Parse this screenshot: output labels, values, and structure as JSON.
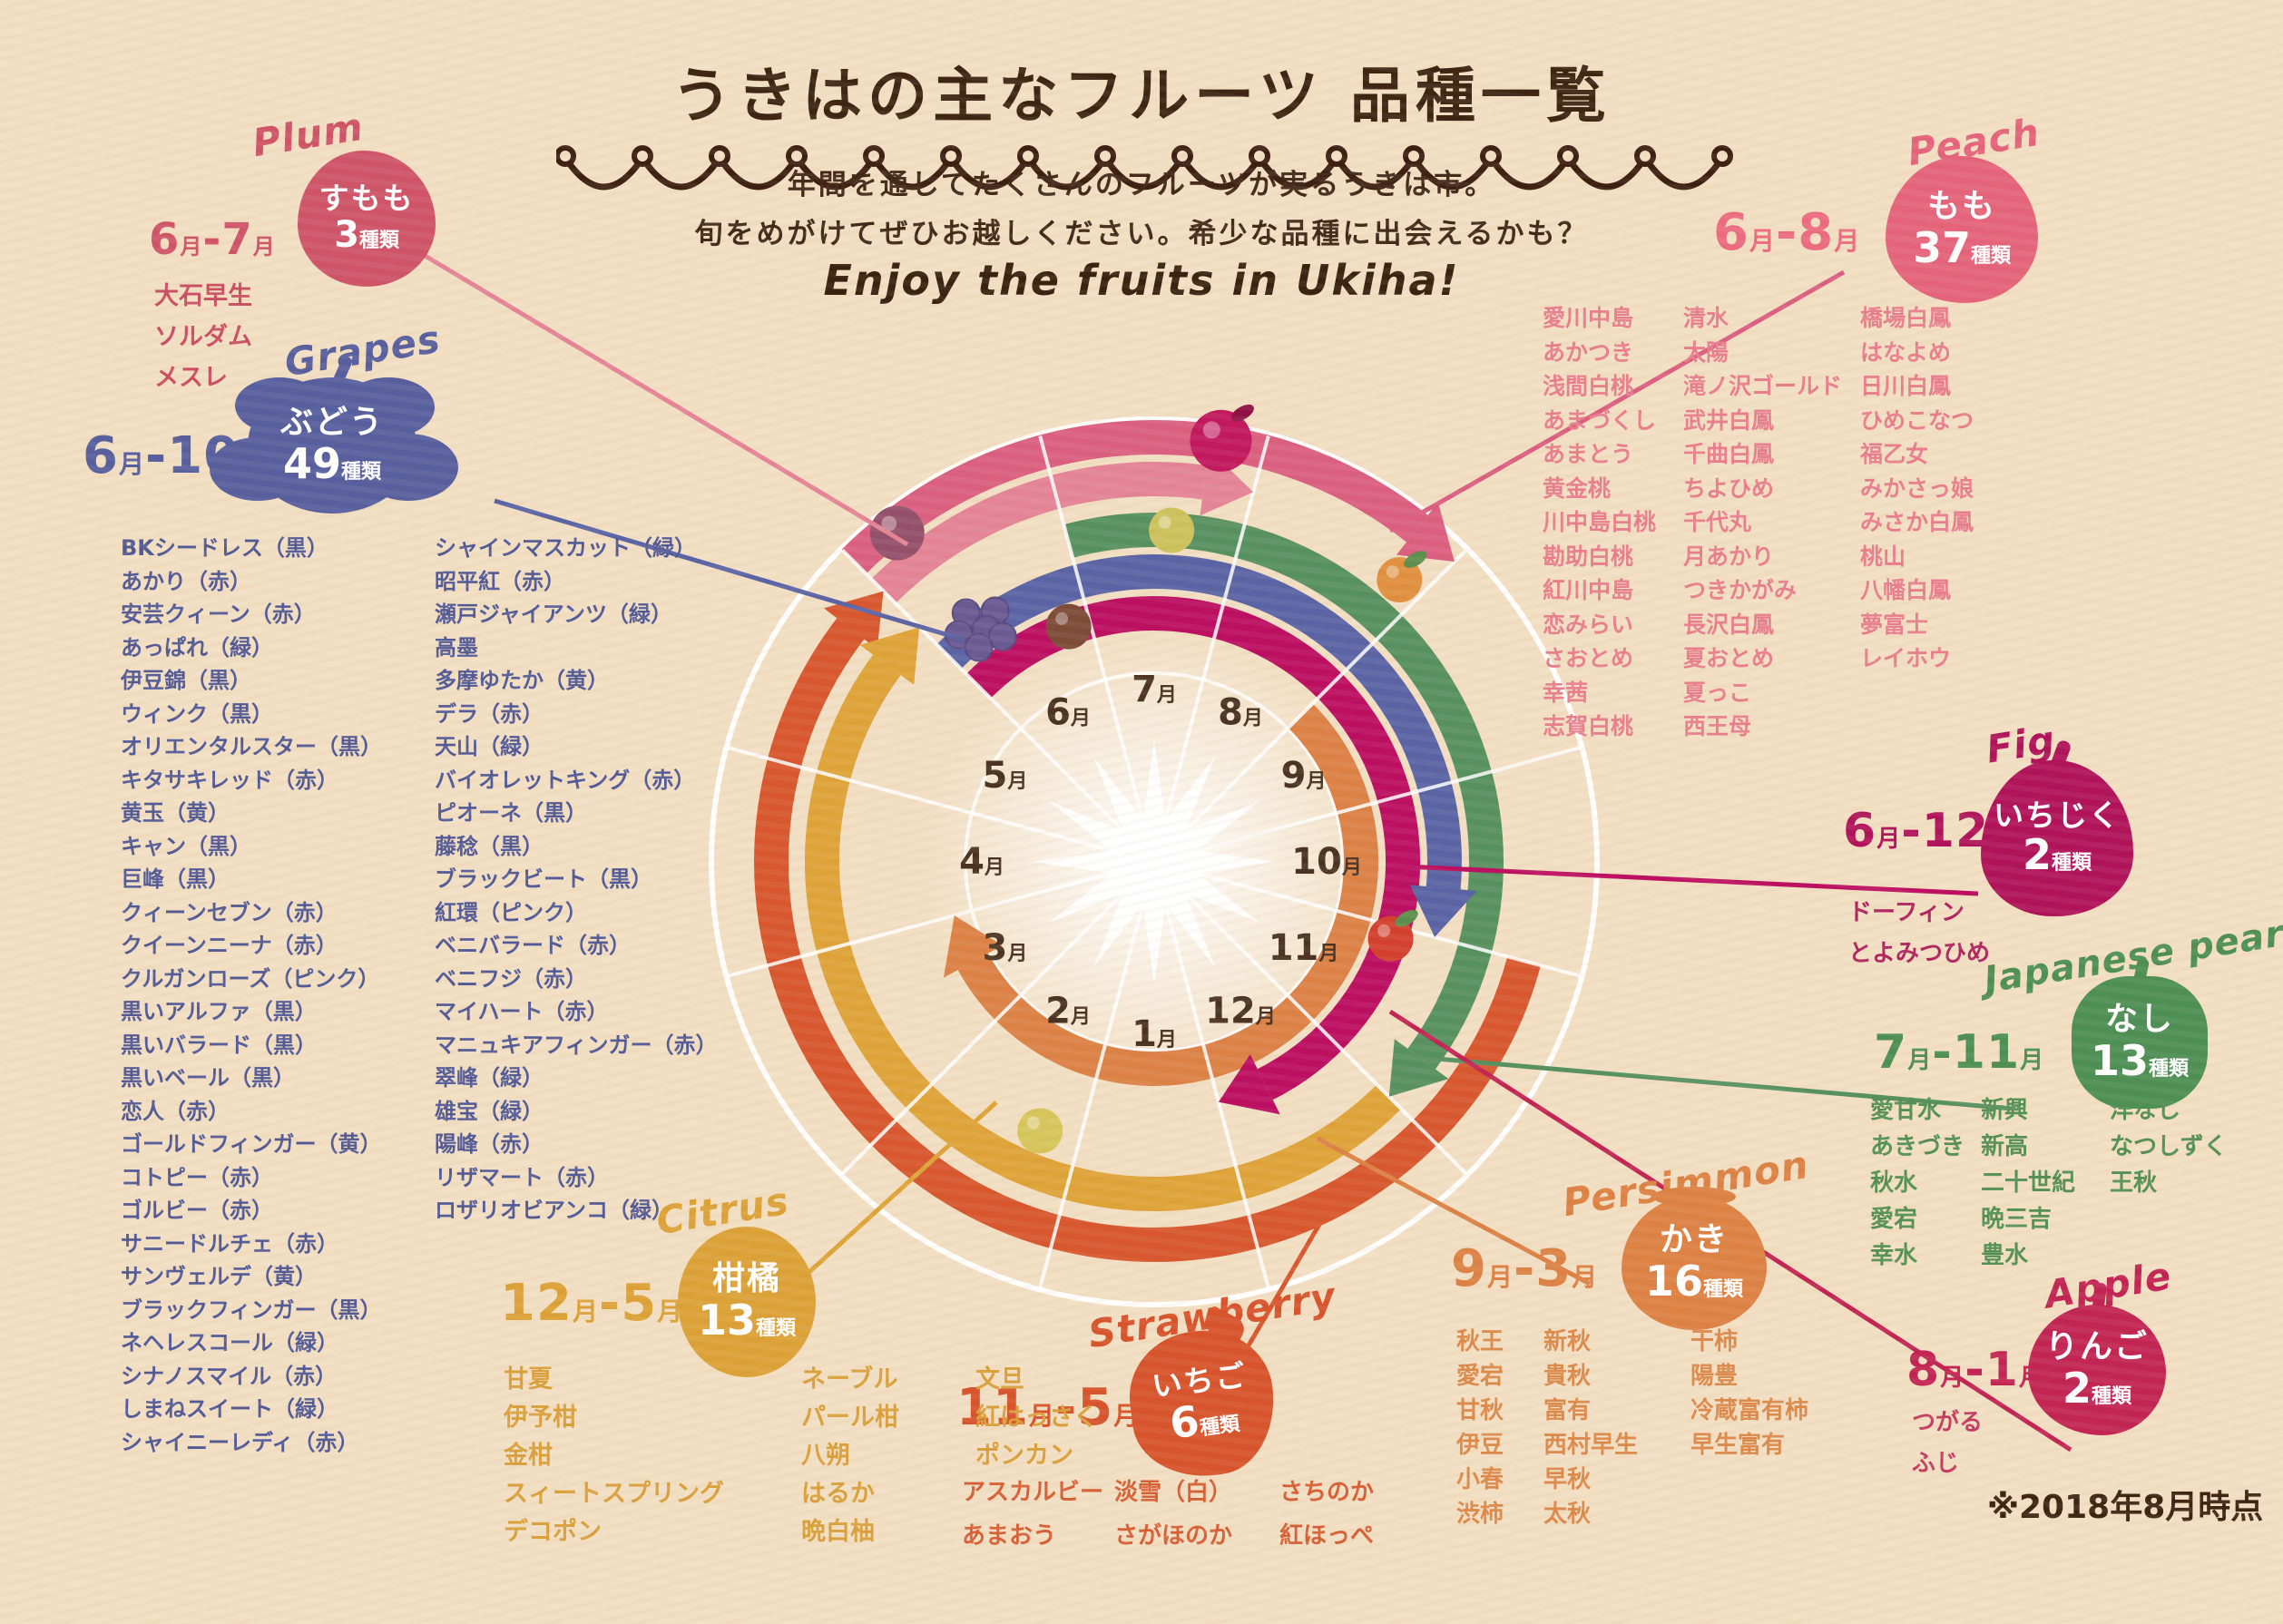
{
  "page": {
    "title": "うきはの主なフルーツ 品種一覧",
    "subtitle_line1": "年間を通してたくさんのフルーツが実るうきは市。",
    "subtitle_line2": "旬をめがけてぜひお越しください。希少な品種に出会えるかも？",
    "tagline": "Enjoy the fruits in Ukiha!",
    "note": "※2018年8月時点"
  },
  "chart_data": {
    "type": "radial-season-wheel",
    "description": "Harvest-calendar wheel: each colored band marks the months (clockwise, 7月 at top) when the fruit is in season in Ukiha.",
    "months_clockwise_from_top": [
      "7月",
      "8月",
      "9月",
      "10月",
      "11月",
      "12月",
      "1月",
      "2月",
      "3月",
      "4月",
      "5月",
      "6月"
    ],
    "series": [
      {
        "id": "plum",
        "label_en": "Plum",
        "name_ja": "すもも",
        "variety_count": 3,
        "count_suffix": "種類",
        "season_label": "6月-7月",
        "start_month": 6,
        "end_month": 7,
        "on_wheel": true,
        "color": "#cf5468",
        "arc_color": "#e48496",
        "varieties_columns": [
          [
            "大石早生",
            "ソルダム",
            "メスレ"
          ]
        ]
      },
      {
        "id": "grapes",
        "label_en": "Grapes",
        "name_ja": "ぶどう",
        "variety_count": 49,
        "count_suffix": "種類",
        "season_label": "6月-10月",
        "start_month": 6,
        "end_month": 10,
        "on_wheel": true,
        "color": "#575f9e",
        "arc_color": "#5a64a5",
        "varieties_columns": [
          [
            "BKシードレス（黒）",
            "あかり（赤）",
            "安芸クィーン（赤）",
            "あっぱれ（緑）",
            "伊豆錦（黒）",
            "ウィンク（黒）",
            "オリエンタルスター（黒）",
            "キタサキレッド（赤）",
            "黄玉（黄）",
            "キャン（黒）",
            "巨峰（黒）",
            "クィーンセブン（赤）",
            "クイーンニーナ（赤）",
            "クルガンローズ（ピンク）",
            "黒いアルファ（黒）",
            "黒いバラード（黒）",
            "黒いベール（黒）",
            "恋人（赤）",
            "ゴールドフィンガー（黄）",
            "コトピー（赤）",
            "ゴルビー（赤）",
            "サニードルチェ（赤）",
            "サンヴェルデ（黄）",
            "ブラックフィンガー（黒）",
            "ネヘレスコール（緑）",
            "シナノスマイル（赤）",
            "しまねスイート（緑）",
            "シャイニーレディ（赤）"
          ],
          [
            "シャインマスカット（緑）",
            "昭平紅（赤）",
            "瀬戸ジャイアンツ（緑）",
            "高墨",
            "多摩ゆたか（黄）",
            "デラ（赤）",
            "天山（緑）",
            "バイオレットキング（赤）",
            "ピオーネ（黒）",
            "藤稔（黒）",
            "ブラックビート（黒）",
            "紅環（ピンク）",
            "ベニバラード（赤）",
            "ベニフジ（赤）",
            "マイハート（赤）",
            "マニュキアフィンガー（赤）",
            "翠峰（緑）",
            "雄宝（緑）",
            "陽峰（赤）",
            "リザマート（赤）",
            "ロザリオビアンコ（緑）"
          ]
        ]
      },
      {
        "id": "peach",
        "label_en": "Peach",
        "name_ja": "もも",
        "variety_count": 37,
        "count_suffix": "種類",
        "season_label": "6月-8月",
        "start_month": 6,
        "end_month": 8,
        "on_wheel": true,
        "color": "#e5647b",
        "arc_color": "#db5f80",
        "varieties_columns": [
          [
            "愛川中島",
            "あかつき",
            "浅間白桃",
            "あまづくし",
            "あまとう",
            "黄金桃",
            "川中島白桃",
            "勘助白桃",
            "紅川中島",
            "恋みらい",
            "さおとめ",
            "幸茜",
            "志賀白桃"
          ],
          [
            "清水",
            "太陽",
            "滝ノ沢ゴールド",
            "武井白鳳",
            "千曲白鳳",
            "ちよひめ",
            "千代丸",
            "月あかり",
            "つきかがみ",
            "長沢白鳳",
            "夏おとめ",
            "夏っこ",
            "西王母"
          ],
          [
            "橋場白鳳",
            "はなよめ",
            "日川白鳳",
            "ひめこなつ",
            "福乙女",
            "みかさっ娘",
            "みさか白鳳",
            "桃山",
            "八幡白鳳",
            "夢富士",
            "レイホウ"
          ]
        ]
      },
      {
        "id": "fig",
        "label_en": "Fig",
        "name_ja": "いちじく",
        "variety_count": 2,
        "count_suffix": "種類",
        "season_label": "6月-12月",
        "start_month": 6,
        "end_month": 12,
        "on_wheel": true,
        "color": "#b1135b",
        "arc_color": "#bc0f62",
        "varieties_columns": [
          [
            "ドーフィン",
            "とよみつひめ"
          ]
        ]
      },
      {
        "id": "pear",
        "label_en": "Japanese pear",
        "name_ja": "なし",
        "variety_count": 13,
        "count_suffix": "種類",
        "season_label": "7月-11月",
        "start_month": 7,
        "end_month": 11,
        "on_wheel": true,
        "color": "#4d8f54",
        "arc_color": "#579160",
        "varieties_columns": [
          [
            "愛甘水",
            "あきづき",
            "秋水",
            "愛宕",
            "幸水"
          ],
          [
            "新興",
            "新高",
            "二十世紀",
            "晩三吉",
            "豊水"
          ],
          [
            "洋なし",
            "なつしずく",
            "王秋"
          ]
        ]
      },
      {
        "id": "apple",
        "label_en": "Apple",
        "name_ja": "りんご",
        "variety_count": 2,
        "count_suffix": "種類",
        "season_label": "8月-1月",
        "start_month": 8,
        "end_month": 1,
        "on_wheel": false,
        "color": "#c22553",
        "arc_color": "#c22553",
        "varieties_columns": [
          [
            "つがる",
            "ふじ"
          ]
        ]
      },
      {
        "id": "persimmon",
        "label_en": "Persimmon",
        "name_ja": "かき",
        "variety_count": 16,
        "count_suffix": "種類",
        "season_label": "9月-3月",
        "start_month": 9,
        "end_month": 3,
        "on_wheel": true,
        "color": "#dd8245",
        "arc_color": "#dc8247",
        "varieties_columns": [
          [
            "秋王",
            "愛宕",
            "甘秋",
            "伊豆",
            "小春",
            "渋柿"
          ],
          [
            "新秋",
            "貴秋",
            "富有",
            "西村早生",
            "早秋",
            "太秋"
          ],
          [
            "干柿",
            "陽豊",
            "冷蔵富有柿",
            "早生富有"
          ]
        ]
      },
      {
        "id": "strawberry",
        "label_en": "Strawberry",
        "name_ja": "いちご",
        "variety_count": 6,
        "count_suffix": "種類",
        "season_label": "11月-5月",
        "start_month": 11,
        "end_month": 5,
        "on_wheel": true,
        "color": "#d7542c",
        "arc_color": "#d8572e",
        "varieties_columns": [
          [
            "アスカルビー",
            "あまおう"
          ],
          [
            "淡雪（白）",
            "さがほのか"
          ],
          [
            "さちのか",
            "紅ほっぺ"
          ]
        ]
      },
      {
        "id": "citrus",
        "label_en": "Citrus",
        "name_ja": "柑橘",
        "variety_count": 13,
        "count_suffix": "種類",
        "season_label": "12月-5月",
        "start_month": 12,
        "end_month": 5,
        "on_wheel": true,
        "color": "#dca238",
        "arc_color": "#dfa439",
        "varieties_columns": [
          [
            "甘夏",
            "伊予柑",
            "金柑",
            "スィートスプリング",
            "デコポン"
          ],
          [
            "ネーブル",
            "パール柑",
            "八朔",
            "はるか",
            "晩白柚"
          ],
          [
            "文旦",
            "紅はっさく",
            "ポンカン"
          ]
        ]
      }
    ]
  }
}
